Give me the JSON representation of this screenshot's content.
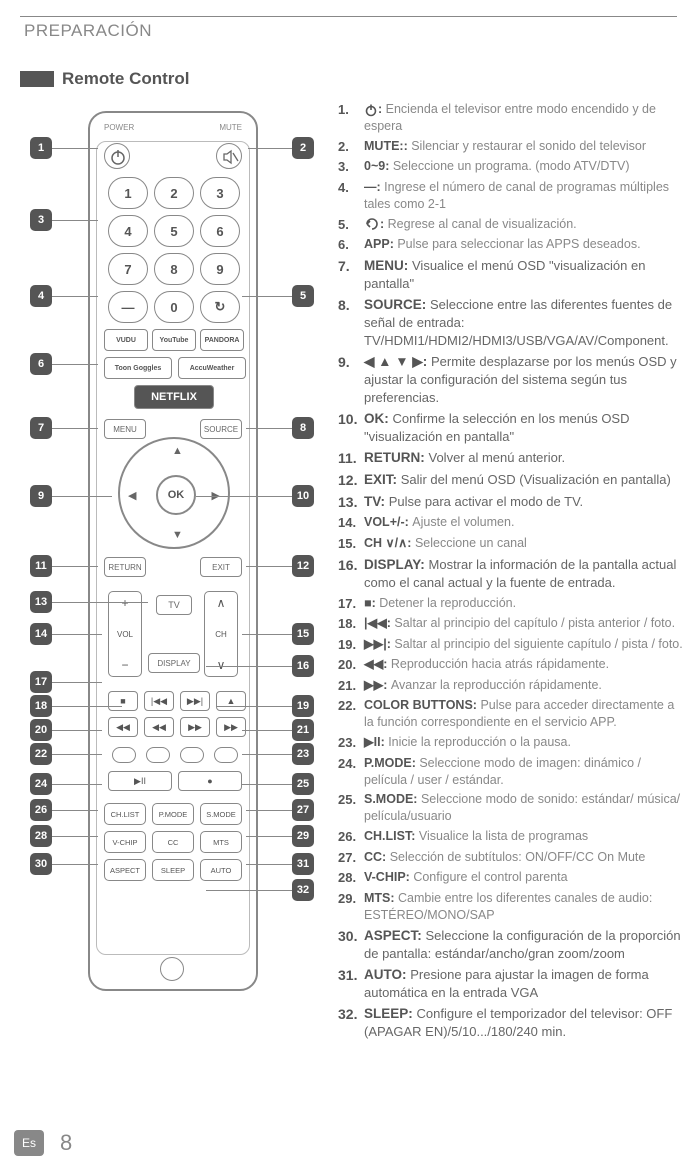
{
  "header": {
    "title": "PREPARACIÓN"
  },
  "section": {
    "title": "Remote Control"
  },
  "remote": {
    "power_label": "POWER",
    "mute_label": "MUTE",
    "numpad": [
      "1",
      "2",
      "3",
      "4",
      "5",
      "6",
      "7",
      "8",
      "9",
      "—",
      "0",
      "↻"
    ],
    "apps": [
      "VUDU",
      "YouTube",
      "PANDORA"
    ],
    "apps2": [
      "Toon Goggles",
      "AccuWeather"
    ],
    "netflix": "NETFLIX",
    "menu_btn": "MENU",
    "source_btn": "SOURCE",
    "ok": "OK",
    "return_btn": "RETURN",
    "exit_btn": "EXIT",
    "vol_label": "VOL",
    "ch_label": "CH",
    "tv_label": "TV",
    "display_label": "DISPLAY",
    "text_rows": [
      [
        "CH.LIST",
        "P.MODE",
        "S.MODE"
      ],
      [
        "V-CHIP",
        "CC",
        "MTS"
      ],
      [
        "ASPECT",
        "SLEEP",
        "AUTO"
      ]
    ]
  },
  "callouts": [
    "1",
    "2",
    "3",
    "4",
    "5",
    "6",
    "7",
    "8",
    "9",
    "10",
    "11",
    "12",
    "13",
    "14",
    "15",
    "16",
    "17",
    "18",
    "19",
    "20",
    "21",
    "22",
    "23",
    "24",
    "25",
    "26",
    "27",
    "28",
    "29",
    "30",
    "31",
    "32"
  ],
  "items": [
    {
      "n": "1.",
      "icon": "power",
      "key": ":",
      "desc": "Encienda el televisor entre modo encendido y de espera"
    },
    {
      "n": "2.",
      "key": "MUTE::",
      "desc": "Silenciar y restaurar el sonido del televisor"
    },
    {
      "n": "3.",
      "key": "0~9:",
      "desc": "Seleccione un programa. (modo ATV/DTV)"
    },
    {
      "n": "4.",
      "key": "—:",
      "desc": "Ingrese el número de canal de programas múltiples tales como 2-1"
    },
    {
      "n": "5.",
      "icon": "return-arrow",
      "key": ":",
      "desc": "Regrese al canal de visualización."
    },
    {
      "n": "6.",
      "key": "APP:",
      "desc": "Pulse para seleccionar las APPS deseados."
    },
    {
      "n": "7.",
      "big": true,
      "key": "MENU:",
      "desc": "Visualice el menú OSD \"visualización en pantalla\""
    },
    {
      "n": "8.",
      "big": true,
      "key": "SOURCE:",
      "desc": "Seleccione entre las diferentes fuentes de señal de entrada: TV/HDMI1/HDMI2/HDMI3/USB/VGA/AV/Component."
    },
    {
      "n": "9.",
      "big": true,
      "icon": "arrows",
      "key": ":",
      "desc": "Permite desplazarse por los menús OSD y ajustar la configuración del sistema según tus preferencias."
    },
    {
      "n": "10.",
      "big": true,
      "key": "OK:",
      "desc": "Confirme la selección en los menús OSD \"visualización en pantalla\""
    },
    {
      "n": "11.",
      "big": true,
      "key": "RETURN:",
      "desc": "Volver al menú anterior."
    },
    {
      "n": "12.",
      "big": true,
      "key": "EXIT:",
      "desc": "Salir del menú OSD (Visualización en pantalla)"
    },
    {
      "n": "13.",
      "big": true,
      "key": "TV:",
      "desc": "Pulse para activar el modo de TV."
    },
    {
      "n": "14.",
      "key": "VOL+/-:",
      "desc": "Ajuste el volumen."
    },
    {
      "n": "15.",
      "key": "CH ∨/∧:",
      "desc": "Seleccione un canal"
    },
    {
      "n": "16.",
      "big": true,
      "key": "DISPLAY:",
      "desc": "Mostrar la información de la pantalla actual como el canal actual y la fuente de entrada."
    },
    {
      "n": "17.",
      "icon": "stop",
      "key": ":",
      "desc": "Detener la reproducción."
    },
    {
      "n": "18.",
      "icon": "prev",
      "key": ":",
      "desc": "Saltar al principio del capítulo / pista anterior / foto."
    },
    {
      "n": "19.",
      "icon": "next",
      "key": ":",
      "desc": "Saltar al principio del siguiente capítulo / pista / foto."
    },
    {
      "n": "20.",
      "icon": "rew",
      "key": ":",
      "desc": "Reproducción hacia atrás rápidamente."
    },
    {
      "n": "21.",
      "icon": "ffwd",
      "key": ":",
      "desc": "Avanzar la reproducción rápidamente."
    },
    {
      "n": "22.",
      "key": "COLOR BUTTONS:",
      "desc": "Pulse para acceder directamente a la función correspondiente en el servicio APP."
    },
    {
      "n": "23.",
      "icon": "playpause",
      "key": ":",
      "desc": "Inicie la reproducción o la pausa."
    },
    {
      "n": "24.",
      "key": "P.MODE:",
      "desc": "Seleccione modo de imagen: dinámico / película / user / estándar."
    },
    {
      "n": "25.",
      "key": "S.MODE:",
      "desc": "Seleccione modo de sonido: estándar/ música/ película/usuario"
    },
    {
      "n": "26.",
      "key": "CH.LIST:",
      "desc": "Visualice la lista de programas"
    },
    {
      "n": "27.",
      "key": "CC:",
      "desc": "Selección de subtítulos: ON/OFF/CC On Mute"
    },
    {
      "n": "28.",
      "key": "V-CHIP:",
      "desc": "Configure el control parenta"
    },
    {
      "n": "29.",
      "key": "MTS:",
      "desc": "Cambie entre los diferentes canales de audio: ESTÉREO/MONO/SAP"
    },
    {
      "n": "30.",
      "big": true,
      "key": "ASPECT:",
      "desc": "Seleccione la configuración de la proporción de pantalla: estándar/ancho/gran zoom/zoom"
    },
    {
      "n": "31.",
      "big": true,
      "key": "AUTO:",
      "desc": "Presione para ajustar la imagen de forma automática en la entrada VGA"
    },
    {
      "n": "32.",
      "big": true,
      "key": "SLEEP:",
      "desc": "Configure el temporizador del televisor: OFF (APAGAR EN)/5/10.../180/240 min."
    }
  ],
  "footer": {
    "lang": "Es",
    "page": "8"
  }
}
